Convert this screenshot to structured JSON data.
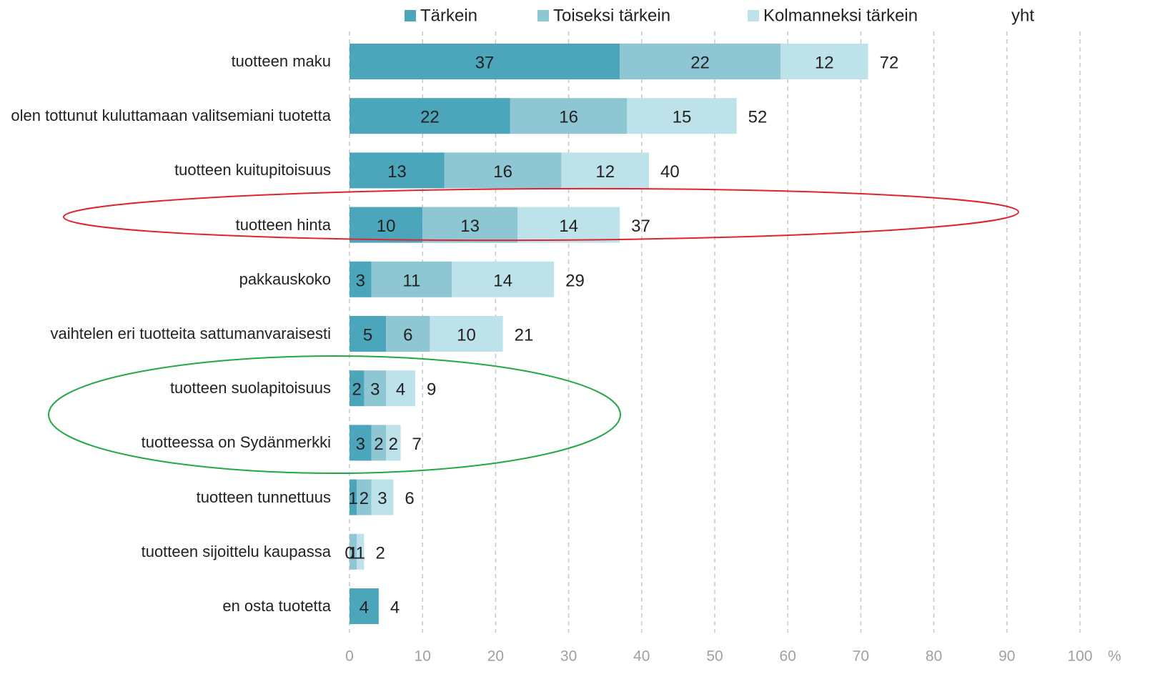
{
  "chart_data": {
    "type": "stacked_bar_horizontal",
    "categories": [
      "tuotteen maku",
      "olen tottunut kuluttamaan valitsemiani tuotetta",
      "tuotteen kuitupitoisuus",
      "tuotteen hinta",
      "pakkauskoko",
      "vaihtelen eri tuotteita sattumanvaraisesti",
      "tuotteen suolapitoisuus",
      "tuotteessa on Sydänmerkki",
      "tuotteen tunnettuus",
      "tuotteen sijoittelu kaupassa",
      "en osta tuotetta"
    ],
    "series": [
      {
        "name": "Tärkein",
        "color": "#4ba5bb",
        "values": [
          37,
          22,
          13,
          10,
          3,
          5,
          2,
          3,
          1,
          0,
          4
        ]
      },
      {
        "name": "Toiseksi tärkein",
        "color": "#8ec6d3",
        "values": [
          22,
          16,
          16,
          13,
          11,
          6,
          3,
          2,
          2,
          1,
          null
        ]
      },
      {
        "name": "Kolmanneksi tärkein",
        "color": "#bde2ea",
        "values": [
          12,
          15,
          12,
          14,
          14,
          10,
          4,
          2,
          3,
          1,
          null
        ]
      }
    ],
    "totals": {
      "name": "yht",
      "values": [
        72,
        52,
        40,
        37,
        29,
        21,
        9,
        7,
        6,
        2,
        4
      ]
    },
    "xlim": [
      0,
      100
    ],
    "xticks": [
      0,
      10,
      20,
      30,
      40,
      50,
      60,
      70,
      80,
      90,
      100
    ],
    "x_unit": "%",
    "grid": true
  }
}
